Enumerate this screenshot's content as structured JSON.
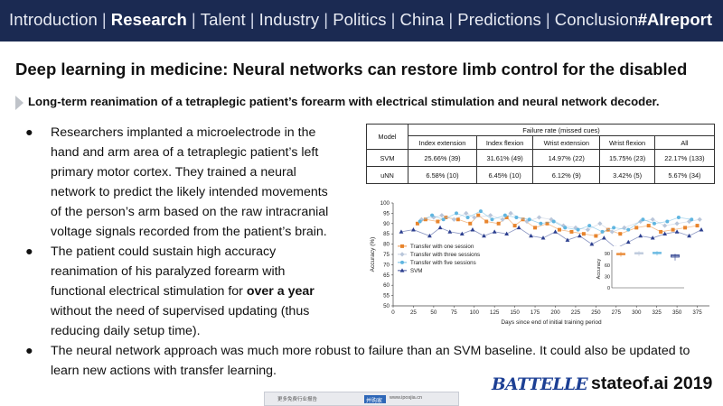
{
  "nav": {
    "items": [
      "Introduction",
      "Research",
      "Talent",
      "Industry",
      "Politics",
      "China",
      "Predictions",
      "Conclusion"
    ],
    "active": "Research",
    "separator": "|",
    "hashtag": "#AIreport"
  },
  "title": "Deep learning in medicine: Neural networks can restore limb control for the disabled",
  "subtitle": "Long-term reanimation of a tetraplegic patient’s forearm with electrical stimulation and neural network decoder.",
  "bullets": {
    "dot": "●",
    "b1": "Researchers implanted a microelectrode in the hand and arm area of a tetraplegic patient’s left primary motor cortex. They trained a neural network to predict the likely intended movements of the person’s arm based on the raw intracranial voltage signals recorded from the patient’s brain.",
    "b2_pre": "The patient could sustain high accuracy reanimation of his paralyzed forearm with functional electrical stimulation for ",
    "b2_bold": "over a year",
    "b2_post": " without the need of supervised updating (thus reducing daily setup time).",
    "b3": "The neural network approach was much more robust to failure than an SVM baseline. It could also be updated to learn new actions with transfer learning."
  },
  "table": {
    "model_header": "Model",
    "group_header": "Failure rate (missed cues)",
    "columns": [
      "Index extension",
      "Index flexion",
      "Wrist extension",
      "Wrist flexion",
      "All"
    ],
    "rows": [
      {
        "model": "SVM",
        "cells": [
          "25.66% (39)",
          "31.61% (49)",
          "14.97% (22)",
          "15.75% (23)",
          "22.17% (133)"
        ]
      },
      {
        "model": "uNN",
        "cells": [
          "6.58% (10)",
          "6.45% (10)",
          "6.12% (9)",
          "3.42% (5)",
          "5.67% (34)"
        ]
      }
    ]
  },
  "chart_data": {
    "type": "scatter",
    "xlabel": "Days since end of initial training period",
    "ylabel": "Accuracy (%)",
    "xlim": [
      0,
      390
    ],
    "ylim": [
      50,
      100
    ],
    "xticks": [
      0,
      25,
      50,
      75,
      100,
      125,
      150,
      175,
      200,
      225,
      250,
      275,
      300,
      325,
      350,
      375
    ],
    "yticks": [
      50,
      55,
      60,
      65,
      70,
      75,
      80,
      85,
      90,
      95,
      100
    ],
    "legend_position": "bottom-left",
    "series": [
      {
        "name": "Transfer with one session",
        "color": "#e8842c",
        "marker": "square",
        "x": [
          30,
          40,
          55,
          65,
          80,
          95,
          105,
          115,
          130,
          140,
          150,
          160,
          175,
          190,
          205,
          220,
          235,
          250,
          265,
          280,
          300,
          315,
          330,
          345,
          360,
          375
        ],
        "y": [
          90,
          92,
          91,
          93,
          92,
          90,
          94,
          91,
          90,
          93,
          89,
          92,
          88,
          90,
          87,
          86,
          85,
          84,
          87,
          85,
          88,
          89,
          86,
          87,
          88,
          89
        ]
      },
      {
        "name": "Transfer with three sessions",
        "color": "#b9c6da",
        "marker": "diamond",
        "x": [
          35,
          50,
          60,
          75,
          90,
          100,
          120,
          135,
          145,
          165,
          180,
          195,
          210,
          225,
          240,
          255,
          270,
          285,
          305,
          320,
          335,
          350,
          365,
          378
        ],
        "y": [
          92,
          93,
          94,
          92,
          95,
          93,
          94,
          92,
          95,
          91,
          93,
          92,
          89,
          88,
          87,
          90,
          86,
          88,
          91,
          92,
          89,
          90,
          91,
          92
        ]
      },
      {
        "name": "Transfer with five sessions",
        "color": "#5fb5e0",
        "marker": "circle",
        "x": [
          33,
          48,
          62,
          78,
          92,
          108,
          122,
          138,
          152,
          168,
          182,
          198,
          212,
          228,
          242,
          258,
          272,
          290,
          308,
          322,
          338,
          352,
          368
        ],
        "y": [
          91,
          94,
          92,
          95,
          93,
          96,
          92,
          94,
          93,
          92,
          90,
          91,
          88,
          87,
          89,
          86,
          88,
          87,
          92,
          90,
          91,
          93,
          92
        ]
      },
      {
        "name": "SVM",
        "color": "#2c3f8f",
        "marker": "triangle",
        "x": [
          10,
          25,
          45,
          58,
          70,
          85,
          98,
          112,
          125,
          140,
          155,
          170,
          185,
          200,
          215,
          230,
          245,
          260,
          275,
          290,
          305,
          320,
          335,
          350,
          365,
          380
        ],
        "y": [
          86,
          87,
          84,
          88,
          86,
          85,
          87,
          84,
          86,
          85,
          88,
          84,
          83,
          86,
          82,
          84,
          80,
          83,
          78,
          81,
          84,
          83,
          85,
          86,
          84,
          87
        ]
      }
    ],
    "inset": {
      "type": "box",
      "ylabel": "Accuracy",
      "ylim": [
        0,
        100
      ],
      "yticks": [
        0,
        30,
        60,
        90
      ],
      "boxes": [
        {
          "color": "#e8842c",
          "min": 82,
          "q1": 87,
          "median": 89,
          "q3": 91,
          "max": 95
        },
        {
          "color": "#b9c6da",
          "min": 84,
          "q1": 89,
          "median": 91,
          "q3": 93,
          "max": 97
        },
        {
          "color": "#5fb5e0",
          "min": 85,
          "q1": 90,
          "median": 92,
          "q3": 94,
          "max": 97
        },
        {
          "color": "#2c3f8f",
          "min": 72,
          "q1": 81,
          "median": 84,
          "q3": 87,
          "max": 90
        }
      ]
    }
  },
  "footer": {
    "battelle": "BATTELLE",
    "stateof": "stateof.ai 2019",
    "bar_text": "更多免费行业报告",
    "bar_badge": "并购家",
    "bar_url": "www.iposjia.cn"
  }
}
